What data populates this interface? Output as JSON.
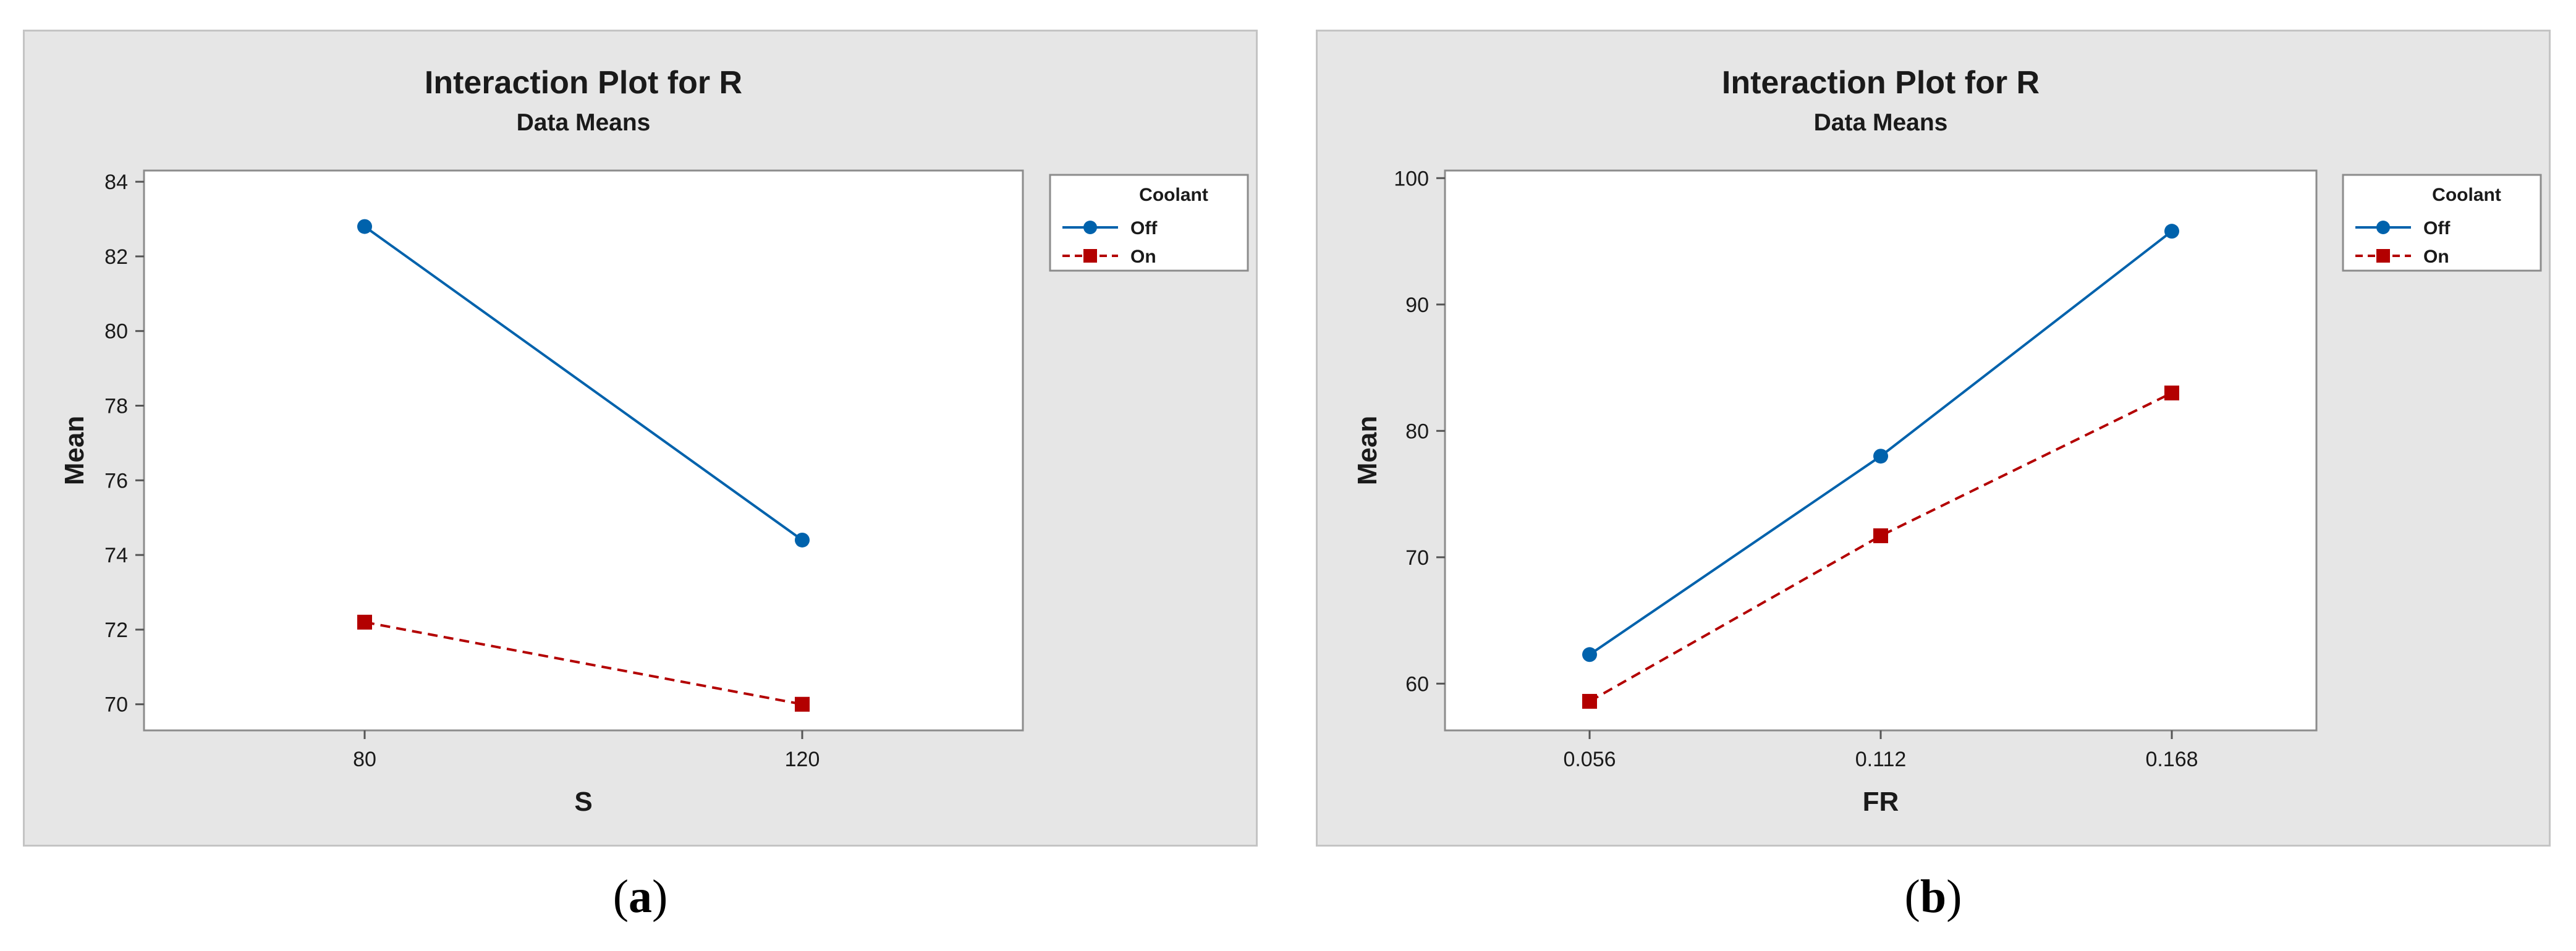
{
  "chart_data": [
    {
      "type": "line",
      "title": "Interaction Plot for R",
      "subtitle": "Data Means",
      "xlabel": "S",
      "ylabel": "Mean",
      "categories": [
        "80",
        "120"
      ],
      "ylim": [
        69.3,
        84.3
      ],
      "yticks": [
        70,
        72,
        74,
        76,
        78,
        80,
        82,
        84
      ],
      "legend_title": "Coolant",
      "legend_position": "right",
      "grid": false,
      "series": [
        {
          "name": "Off",
          "values": [
            82.8,
            74.4
          ],
          "color": "#0062ac",
          "marker": "circle",
          "line": "solid"
        },
        {
          "name": "On",
          "values": [
            72.2,
            70.0
          ],
          "color": "#b30000",
          "marker": "square",
          "line": "dashed"
        }
      ],
      "caption": "(a)"
    },
    {
      "type": "line",
      "title": "Interaction Plot for R",
      "subtitle": "Data Means",
      "xlabel": "FR",
      "ylabel": "Mean",
      "categories": [
        "0.056",
        "0.112",
        "0.168"
      ],
      "ylim": [
        56.3,
        100.6
      ],
      "yticks": [
        60,
        70,
        80,
        90,
        100
      ],
      "legend_title": "Coolant",
      "legend_position": "right",
      "grid": false,
      "series": [
        {
          "name": "Off",
          "values": [
            62.3,
            78.0,
            95.8
          ],
          "color": "#0062ac",
          "marker": "circle",
          "line": "solid"
        },
        {
          "name": "On",
          "values": [
            58.6,
            71.7,
            83.0
          ],
          "color": "#b30000",
          "marker": "square",
          "line": "dashed"
        }
      ],
      "caption": "(b)"
    }
  ]
}
